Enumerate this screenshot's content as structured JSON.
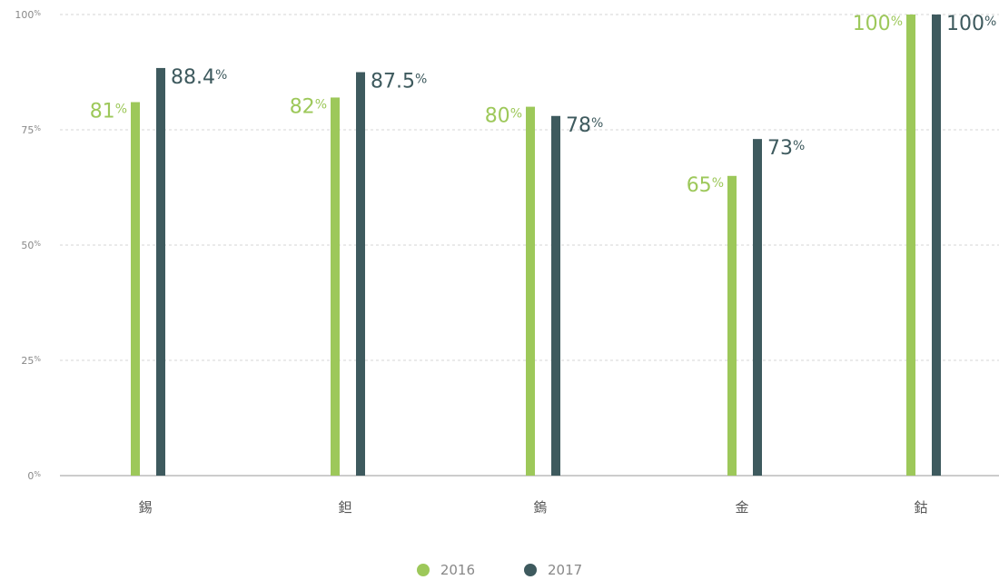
{
  "chart_data": {
    "type": "bar",
    "categories": [
      "錫",
      "鉭",
      "鎢",
      "金",
      "鈷"
    ],
    "series": [
      {
        "name": "2016",
        "values": [
          81,
          82,
          80,
          65,
          100
        ],
        "labels": [
          "81",
          "82",
          "80",
          "65",
          "100"
        ],
        "color": "#9dc85a"
      },
      {
        "name": "2017",
        "values": [
          88.4,
          87.5,
          78,
          73,
          100
        ],
        "labels": [
          "88.4",
          "87.5",
          "78",
          "73",
          "100"
        ],
        "color": "#3e5a5e"
      }
    ],
    "ylim": [
      0,
      100
    ],
    "yticks": [
      0,
      25,
      50,
      75,
      100
    ],
    "ytick_suffix": "%",
    "value_suffix": "%",
    "grid": true,
    "legend_position": "bottom-center",
    "xlabel": "",
    "ylabel": "",
    "title": ""
  }
}
